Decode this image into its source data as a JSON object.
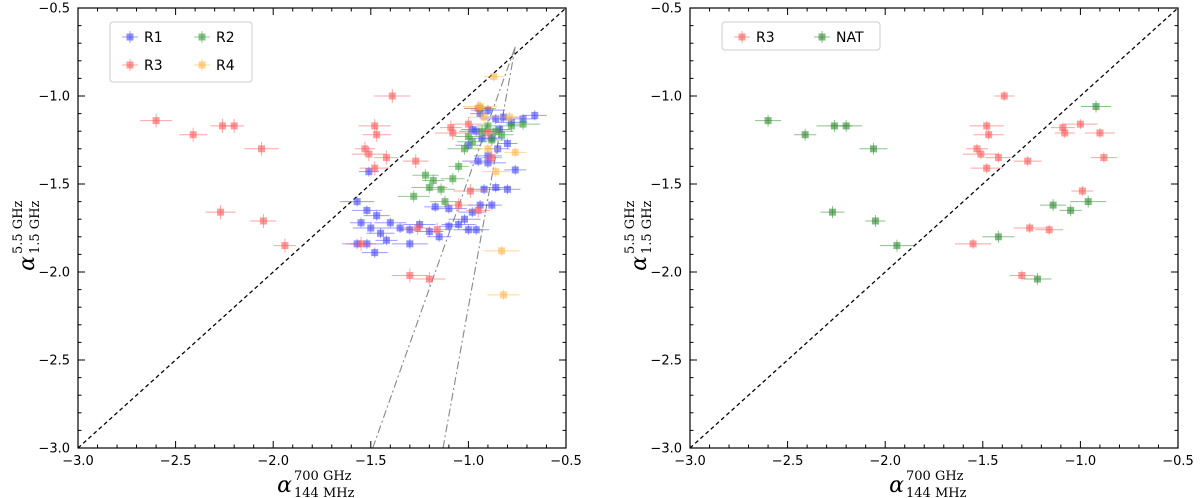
{
  "chart_data": [
    {
      "type": "scatter",
      "panel": "left",
      "xlabel": {
        "base": "α",
        "sup": "700 GHz",
        "sub": "144 MHz"
      },
      "ylabel": {
        "base": "α",
        "sup": "5.5 GHz",
        "sub": "1.5 GHz"
      },
      "xlim": [
        -3.0,
        -0.5
      ],
      "ylim": [
        -3.0,
        -0.5
      ],
      "xticks": [
        "−3.0",
        "−2.5",
        "−2.0",
        "−1.5",
        "−1.0",
        "−0.5"
      ],
      "yticks": [
        "−3.0",
        "−2.5",
        "−2.0",
        "−1.5",
        "−1.0",
        "−0.5"
      ],
      "legend_position": "top-left",
      "lines": [
        {
          "name": "one-to-one",
          "style": "dashed",
          "color": "#000000",
          "points": [
            [
              -3.0,
              -3.0
            ],
            [
              -0.5,
              -0.5
            ]
          ]
        },
        {
          "name": "guide-1",
          "style": "dash-dot",
          "color": "#888888",
          "points": [
            [
              -1.49,
              -3.0
            ],
            [
              -0.76,
              -0.72
            ]
          ]
        },
        {
          "name": "guide-2",
          "style": "dash-dot",
          "color": "#888888",
          "points": [
            [
              -1.13,
              -3.0
            ],
            [
              -0.76,
              -0.72
            ]
          ]
        }
      ],
      "series": [
        {
          "name": "R1",
          "color": "#4a4aff",
          "points": [
            [
              -1.51,
              -1.43
            ],
            [
              -1.57,
              -1.6
            ],
            [
              -1.52,
              -1.65
            ],
            [
              -1.47,
              -1.68
            ],
            [
              -1.55,
              -1.72
            ],
            [
              -1.5,
              -1.75
            ],
            [
              -1.4,
              -1.72
            ],
            [
              -1.45,
              -1.78
            ],
            [
              -1.35,
              -1.75
            ],
            [
              -1.3,
              -1.76
            ],
            [
              -1.52,
              -1.84
            ],
            [
              -1.57,
              -1.84
            ],
            [
              -1.48,
              -1.89
            ],
            [
              -1.42,
              -1.82
            ],
            [
              -1.3,
              -1.84
            ],
            [
              -1.25,
              -1.73
            ],
            [
              -1.2,
              -1.77
            ],
            [
              -1.15,
              -1.8
            ],
            [
              -1.1,
              -1.74
            ],
            [
              -1.05,
              -1.73
            ],
            [
              -1.0,
              -1.76
            ],
            [
              -0.96,
              -1.76
            ],
            [
              -1.17,
              -1.63
            ],
            [
              -1.1,
              -1.64
            ],
            [
              -1.02,
              -1.7
            ],
            [
              -0.98,
              -1.66
            ],
            [
              -0.94,
              -1.62
            ],
            [
              -0.88,
              -1.62
            ],
            [
              -0.92,
              -1.53
            ],
            [
              -0.86,
              -1.52
            ],
            [
              -0.8,
              -1.53
            ],
            [
              -0.76,
              -1.42
            ],
            [
              -0.9,
              -1.38
            ],
            [
              -0.95,
              -1.37
            ],
            [
              -0.9,
              -1.34
            ],
            [
              -0.85,
              -1.3
            ],
            [
              -0.8,
              -1.27
            ],
            [
              -0.96,
              -1.2
            ],
            [
              -0.93,
              -1.24
            ],
            [
              -0.88,
              -1.24
            ],
            [
              -0.84,
              -1.19
            ],
            [
              -0.82,
              -1.12
            ],
            [
              -0.78,
              -1.15
            ],
            [
              -0.72,
              -1.13
            ],
            [
              -0.66,
              -1.11
            ],
            [
              -0.94,
              -1.1
            ],
            [
              -0.9,
              -1.08
            ],
            [
              -0.86,
              -1.13
            ],
            [
              -1.0,
              -1.28
            ],
            [
              -0.98,
              -1.19
            ]
          ]
        },
        {
          "name": "R2",
          "color": "#3a9e3a",
          "points": [
            [
              -1.22,
              -1.45
            ],
            [
              -1.18,
              -1.48
            ],
            [
              -1.2,
              -1.52
            ],
            [
              -1.28,
              -1.57
            ],
            [
              -1.14,
              -1.53
            ],
            [
              -1.08,
              -1.47
            ],
            [
              -1.05,
              -1.4
            ],
            [
              -1.02,
              -1.3
            ],
            [
              -0.98,
              -1.26
            ],
            [
              -0.93,
              -1.2
            ],
            [
              -0.9,
              -1.17
            ],
            [
              -0.86,
              -1.2
            ],
            [
              -0.94,
              -1.07
            ],
            [
              -0.88,
              -1.25
            ],
            [
              -0.83,
              -1.22
            ],
            [
              -0.78,
              -1.17
            ],
            [
              -0.72,
              -1.16
            ],
            [
              -1.12,
              -1.6
            ],
            [
              -1.0,
              -1.23
            ]
          ]
        },
        {
          "name": "R3",
          "color": "#ff5a5a",
          "points": [
            [
              -2.6,
              -1.14
            ],
            [
              -2.41,
              -1.22
            ],
            [
              -2.26,
              -1.17
            ],
            [
              -2.2,
              -1.17
            ],
            [
              -2.06,
              -1.3
            ],
            [
              -2.27,
              -1.66
            ],
            [
              -2.05,
              -1.71
            ],
            [
              -1.94,
              -1.85
            ],
            [
              -1.39,
              -1.0
            ],
            [
              -1.48,
              -1.17
            ],
            [
              -1.47,
              -1.22
            ],
            [
              -1.42,
              -1.35
            ],
            [
              -1.53,
              -1.3
            ],
            [
              -1.51,
              -1.33
            ],
            [
              -1.48,
              -1.41
            ],
            [
              -1.27,
              -1.37
            ],
            [
              -1.09,
              -1.18
            ],
            [
              -1.08,
              -1.21
            ],
            [
              -1.0,
              -1.16
            ],
            [
              -0.95,
              -1.07
            ],
            [
              -0.9,
              -1.21
            ],
            [
              -0.88,
              -1.35
            ],
            [
              -0.99,
              -1.54
            ],
            [
              -1.55,
              -1.84
            ],
            [
              -1.26,
              -1.75
            ],
            [
              -1.16,
              -1.76
            ],
            [
              -1.3,
              -2.02
            ],
            [
              -1.2,
              -2.04
            ],
            [
              -1.05,
              -1.62
            ],
            [
              -0.95,
              -1.65
            ]
          ]
        },
        {
          "name": "R4",
          "color": "#ffb84d",
          "points": [
            [
              -0.87,
              -0.89
            ],
            [
              -0.94,
              -1.06
            ],
            [
              -0.92,
              -1.12
            ],
            [
              -0.79,
              -1.12
            ],
            [
              -0.76,
              -1.32
            ],
            [
              -0.83,
              -1.88
            ],
            [
              -0.82,
              -2.13
            ],
            [
              -0.86,
              -1.43
            ],
            [
              -0.9,
              -1.3
            ]
          ]
        }
      ]
    },
    {
      "type": "scatter",
      "panel": "right",
      "xlabel": {
        "base": "α",
        "sup": "700 GHz",
        "sub": "144 MHz"
      },
      "ylabel": {
        "base": "α",
        "sup": "5.5 GHz",
        "sub": "1.5 GHz"
      },
      "xlim": [
        -3.0,
        -0.5
      ],
      "ylim": [
        -3.0,
        -0.5
      ],
      "xticks": [
        "−3.0",
        "−2.5",
        "−2.0",
        "−1.5",
        "−1.0",
        "−0.5"
      ],
      "yticks": [
        "−3.0",
        "−2.5",
        "−2.0",
        "−1.5",
        "−1.0",
        "−0.5"
      ],
      "legend_position": "top-left",
      "lines": [
        {
          "name": "one-to-one",
          "style": "dashed",
          "color": "#000000",
          "points": [
            [
              -3.0,
              -3.0
            ],
            [
              -0.5,
              -0.5
            ]
          ]
        }
      ],
      "series": [
        {
          "name": "R3",
          "color": "#ff5a5a",
          "points": [
            [
              -1.39,
              -1.0
            ],
            [
              -1.48,
              -1.17
            ],
            [
              -1.47,
              -1.22
            ],
            [
              -1.42,
              -1.35
            ],
            [
              -1.53,
              -1.3
            ],
            [
              -1.51,
              -1.33
            ],
            [
              -1.48,
              -1.41
            ],
            [
              -1.27,
              -1.37
            ],
            [
              -1.09,
              -1.18
            ],
            [
              -1.08,
              -1.21
            ],
            [
              -1.0,
              -1.16
            ],
            [
              -0.9,
              -1.21
            ],
            [
              -0.88,
              -1.35
            ],
            [
              -0.99,
              -1.54
            ],
            [
              -1.55,
              -1.84
            ],
            [
              -1.26,
              -1.75
            ],
            [
              -1.16,
              -1.76
            ],
            [
              -1.3,
              -2.02
            ]
          ]
        },
        {
          "name": "NAT",
          "color": "#2e8b2e",
          "points": [
            [
              -2.6,
              -1.14
            ],
            [
              -2.41,
              -1.22
            ],
            [
              -2.26,
              -1.17
            ],
            [
              -2.2,
              -1.17
            ],
            [
              -2.06,
              -1.3
            ],
            [
              -2.27,
              -1.66
            ],
            [
              -2.05,
              -1.71
            ],
            [
              -1.94,
              -1.85
            ],
            [
              -0.92,
              -1.06
            ],
            [
              -1.14,
              -1.62
            ],
            [
              -1.05,
              -1.65
            ],
            [
              -0.96,
              -1.6
            ],
            [
              -1.42,
              -1.8
            ],
            [
              -1.22,
              -2.04
            ]
          ]
        }
      ]
    }
  ]
}
